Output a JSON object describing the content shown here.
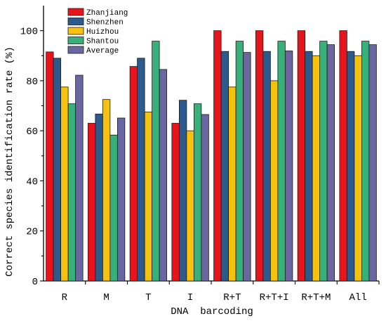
{
  "chart_data": {
    "type": "bar",
    "xlabel": "DNA  barcoding",
    "ylabel": "Correct species identification rate (%)",
    "ylim": [
      0,
      110
    ],
    "yticks": [
      0,
      20,
      40,
      60,
      80,
      100
    ],
    "categories": [
      "R",
      "M",
      "T",
      "I",
      "R+T",
      "R+T+I",
      "R+T+M",
      "All"
    ],
    "legend_position": "top-left",
    "grid": false,
    "series": [
      {
        "name": "Zhanjiang",
        "color": "#e8141c",
        "values": [
          91.5,
          63,
          85.7,
          63,
          100,
          100,
          100,
          100
        ]
      },
      {
        "name": "Shenzhen",
        "color": "#2c5a8c",
        "values": [
          89,
          66.7,
          89,
          72.2,
          91.7,
          91.7,
          91.7,
          91.7
        ]
      },
      {
        "name": "Huizhou",
        "color": "#f7c20e",
        "values": [
          77.5,
          72.5,
          67.5,
          60,
          77.5,
          80,
          90,
          90
        ]
      },
      {
        "name": "Shantou",
        "color": "#37b07a",
        "values": [
          70.8,
          58.3,
          95.8,
          70.8,
          95.8,
          95.8,
          95.8,
          95.8
        ]
      },
      {
        "name": "Average",
        "color": "#6a67a0",
        "values": [
          82.2,
          65.1,
          84.5,
          66.5,
          91.3,
          91.9,
          94.4,
          94.4
        ]
      }
    ]
  }
}
